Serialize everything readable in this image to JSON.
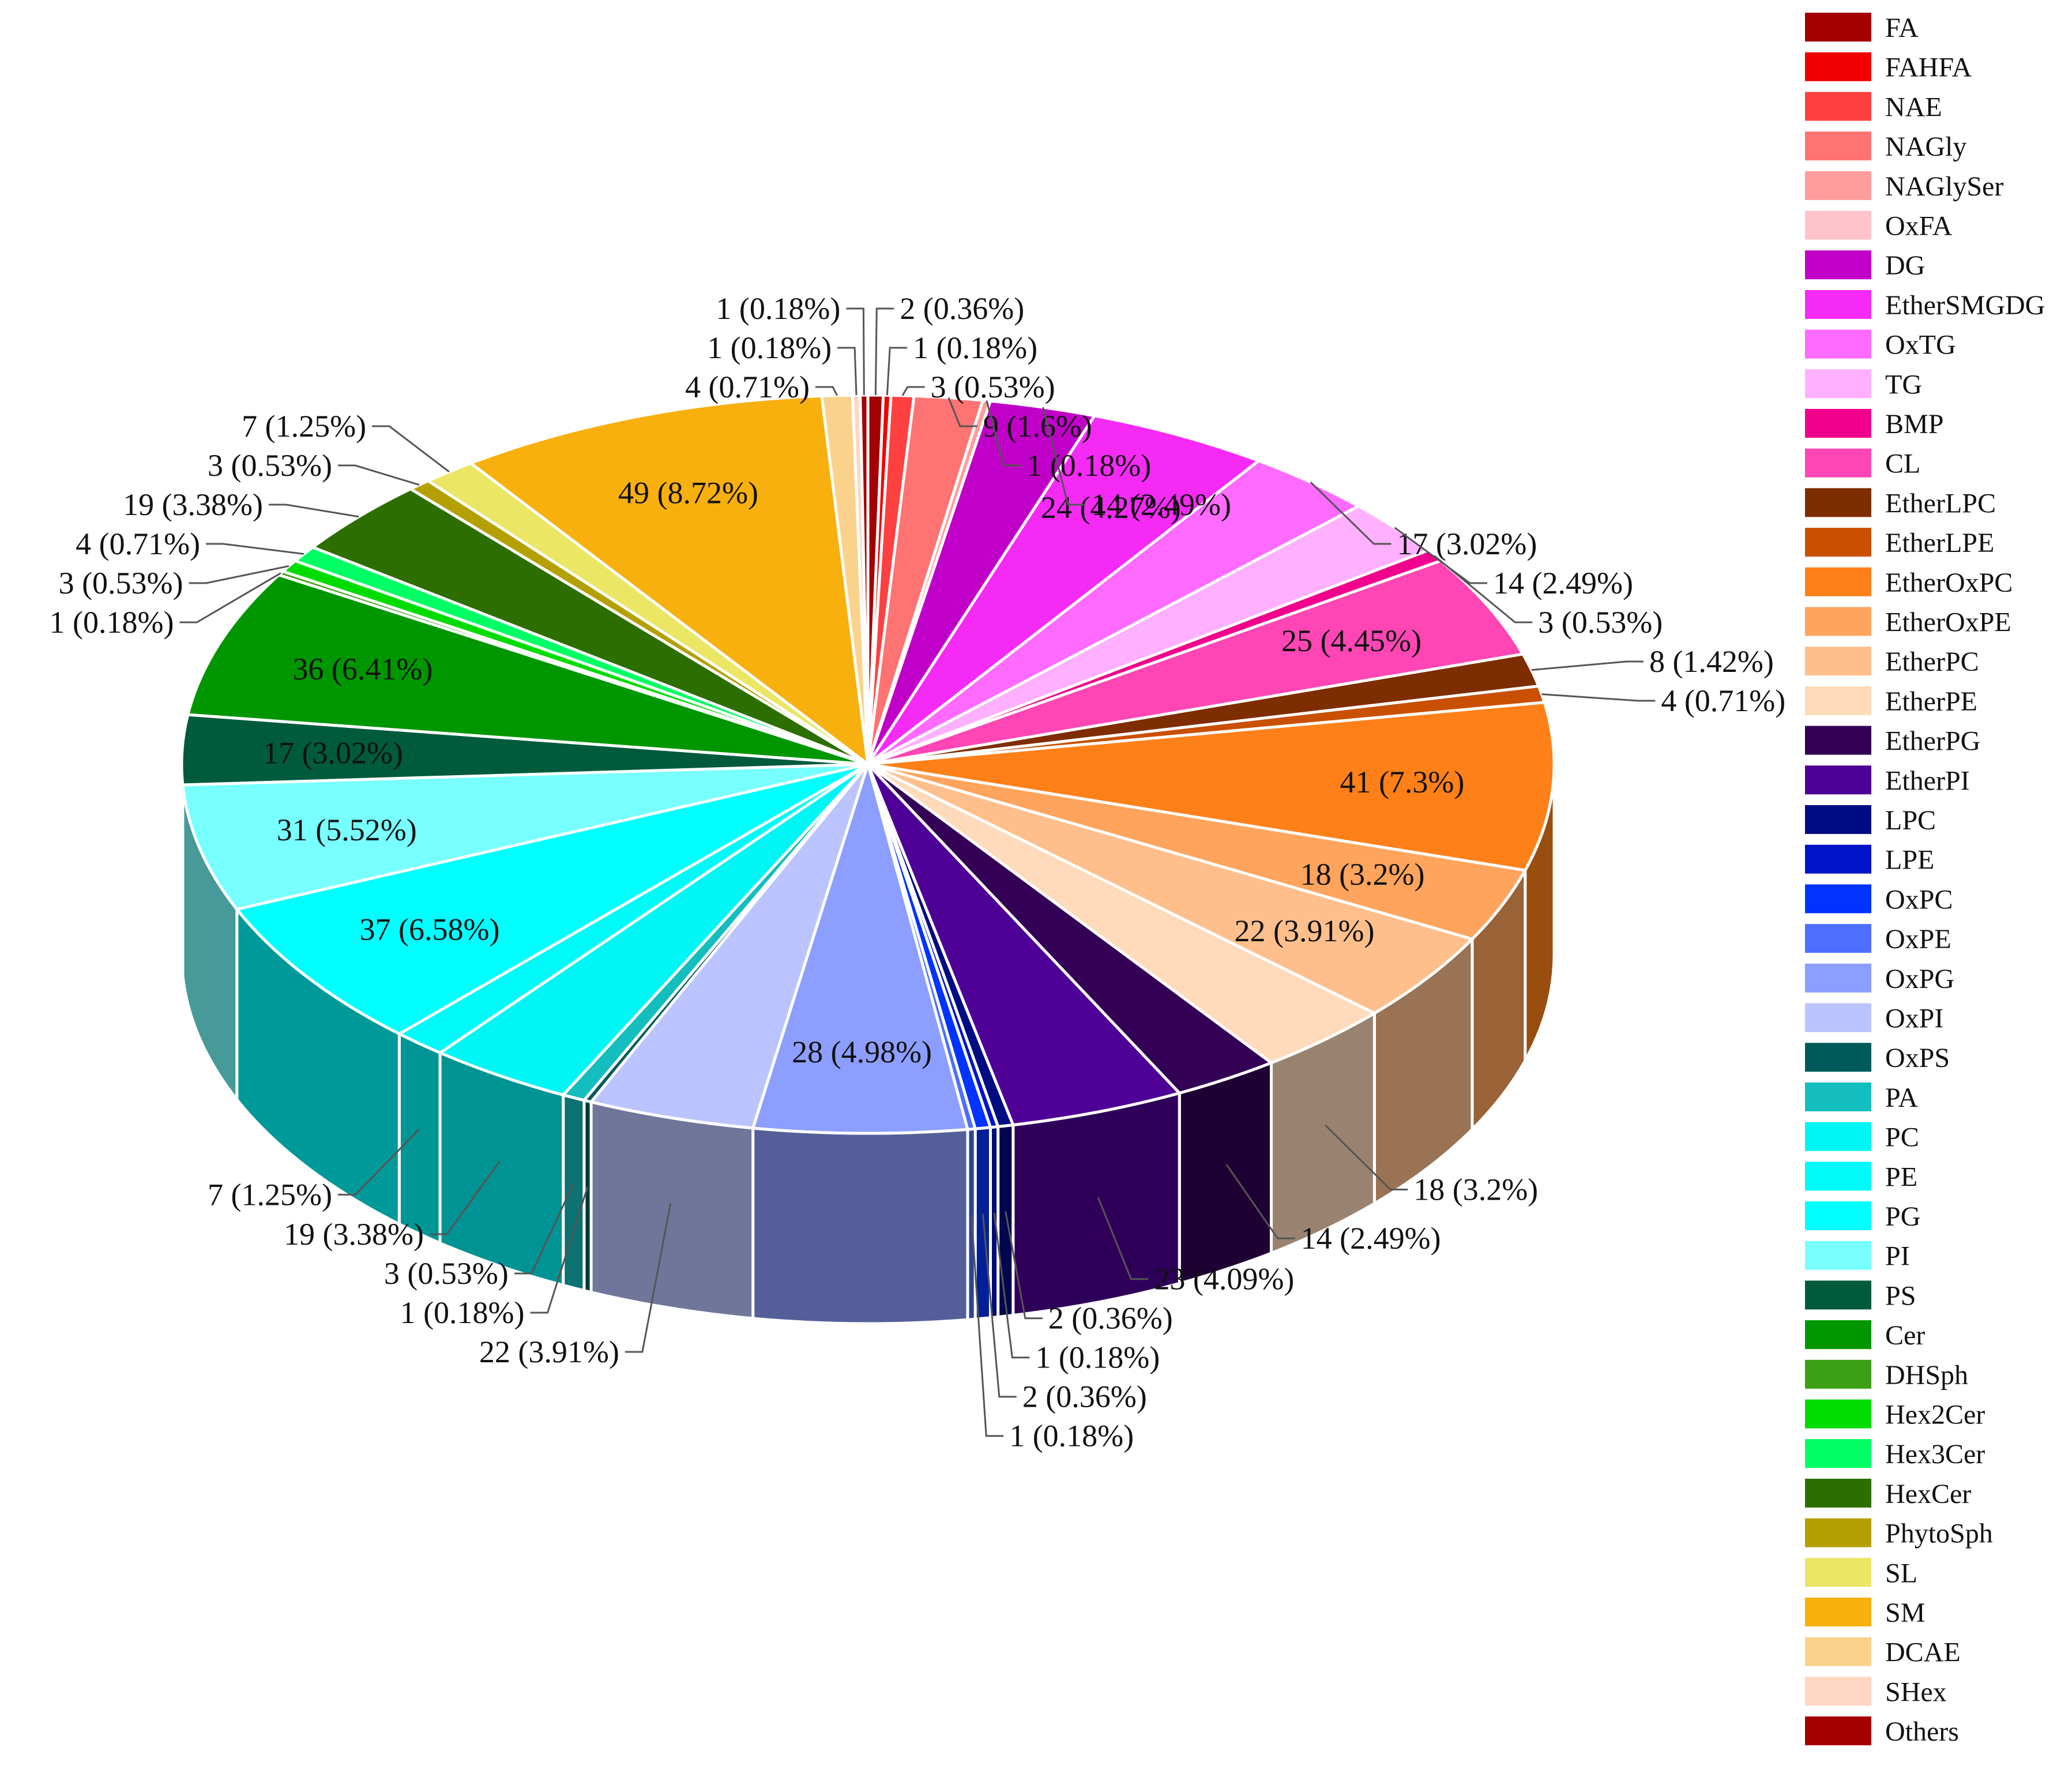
{
  "chart_data": {
    "type": "pie",
    "variant": "3d",
    "legend_position": "right",
    "slices": [
      {
        "name": "FA",
        "value": 2,
        "label": "2 (0.36%)",
        "color": "#A50000",
        "label_inside": false
      },
      {
        "name": "FAHFA",
        "value": 1,
        "label": "1 (0.18%)",
        "color": "#F00000",
        "label_inside": false
      },
      {
        "name": "NAE",
        "value": 3,
        "label": "3 (0.53%)",
        "color": "#FF4040",
        "label_inside": false
      },
      {
        "name": "NAGly",
        "value": 9,
        "label": "9 (1.6%)",
        "color": "#FF7373",
        "label_inside": false
      },
      {
        "name": "NAGlySer",
        "value": 1,
        "label": "1 (0.18%)",
        "color": "#FF9C9C",
        "label_inside": false
      },
      {
        "name": "OxFA",
        "value": 0,
        "label": "",
        "color": "#FFC3CC",
        "label_inside": false
      },
      {
        "name": "DG",
        "value": 14,
        "label": "14 (2.49%)",
        "color": "#C000C8",
        "label_inside": false
      },
      {
        "name": "EtherSMGDG",
        "value": 24,
        "label": "24 (4.27%)",
        "color": "#F52AF5",
        "label_inside": true
      },
      {
        "name": "OxTG",
        "value": 17,
        "label": "17 (3.02%)",
        "color": "#FF6AFF",
        "label_inside": false
      },
      {
        "name": "TG",
        "value": 14,
        "label": "14 (2.49%)",
        "color": "#FFB0FF",
        "label_inside": false
      },
      {
        "name": "BMP",
        "value": 3,
        "label": "3 (0.53%)",
        "color": "#F0008C",
        "label_inside": false
      },
      {
        "name": "CL",
        "value": 25,
        "label": "25 (4.45%)",
        "color": "#FF46B4",
        "label_inside": true
      },
      {
        "name": "EtherLPC",
        "value": 8,
        "label": "8 (1.42%)",
        "color": "#7D2D00",
        "label_inside": false
      },
      {
        "name": "EtherLPE",
        "value": 4,
        "label": "4 (0.71%)",
        "color": "#C85000",
        "label_inside": false
      },
      {
        "name": "EtherOxPC",
        "value": 41,
        "label": "41 (7.3%)",
        "color": "#FF8019",
        "label_inside": true
      },
      {
        "name": "EtherOxPE",
        "value": 18,
        "label": "18 (3.2%)",
        "color": "#FFA45C",
        "label_inside": true
      },
      {
        "name": "EtherPC",
        "value": 22,
        "label": "22 (3.91%)",
        "color": "#FFBF8C",
        "label_inside": true
      },
      {
        "name": "EtherPE",
        "value": 18,
        "label": "18 (3.2%)",
        "color": "#FFDABB",
        "label_inside": false
      },
      {
        "name": "EtherPG",
        "value": 14,
        "label": "14 (2.49%)",
        "color": "#330055",
        "label_inside": false
      },
      {
        "name": "EtherPI",
        "value": 23,
        "label": "23 (4.09%)",
        "color": "#4E0096",
        "label_inside": false
      },
      {
        "name": "LPC",
        "value": 2,
        "label": "2 (0.36%)",
        "color": "#000C82",
        "label_inside": false
      },
      {
        "name": "LPE",
        "value": 1,
        "label": "1 (0.18%)",
        "color": "#0014C8",
        "label_inside": false
      },
      {
        "name": "OxPC",
        "value": 2,
        "label": "2 (0.36%)",
        "color": "#0033FF",
        "label_inside": false
      },
      {
        "name": "OxPE",
        "value": 1,
        "label": "1 (0.18%)",
        "color": "#4D6EFF",
        "label_inside": false
      },
      {
        "name": "OxPG",
        "value": 28,
        "label": "28 (4.98%)",
        "color": "#8C9EFF",
        "label_inside": true
      },
      {
        "name": "OxPI",
        "value": 22,
        "label": "22 (3.91%)",
        "color": "#BBC4FF",
        "label_inside": false
      },
      {
        "name": "OxPS",
        "value": 1,
        "label": "1 (0.18%)",
        "color": "#005A5A",
        "label_inside": false
      },
      {
        "name": "PA",
        "value": 3,
        "label": "3 (0.53%)",
        "color": "#14BEBE",
        "label_inside": false
      },
      {
        "name": "PC",
        "value": 19,
        "label": "19 (3.38%)",
        "color": "#00F5F5",
        "label_inside": false
      },
      {
        "name": "PE",
        "value": 7,
        "label": "7 (1.25%)",
        "color": "#00FAFA",
        "label_inside": false
      },
      {
        "name": "PG",
        "value": 37,
        "label": "37 (6.58%)",
        "color": "#00FFFF",
        "label_inside": true
      },
      {
        "name": "PI",
        "value": 31,
        "label": "31 (5.52%)",
        "color": "#78FFFF",
        "label_inside": true
      },
      {
        "name": "PS",
        "value": 17,
        "label": "17 (3.02%)",
        "color": "#005A3C",
        "label_inside": true
      },
      {
        "name": "Cer",
        "value": 36,
        "label": "36 (6.41%)",
        "color": "#009600",
        "label_inside": true
      },
      {
        "name": "DHSph",
        "value": 1,
        "label": "1 (0.18%)",
        "color": "#3CA014",
        "label_inside": false
      },
      {
        "name": "Hex2Cer",
        "value": 3,
        "label": "3 (0.53%)",
        "color": "#00DC00",
        "label_inside": false
      },
      {
        "name": "Hex3Cer",
        "value": 4,
        "label": "4 (0.71%)",
        "color": "#00FF64",
        "label_inside": false
      },
      {
        "name": "HexCer",
        "value": 19,
        "label": "19 (3.38%)",
        "color": "#2D6E00",
        "label_inside": false
      },
      {
        "name": "PhytoSph",
        "value": 3,
        "label": "3 (0.53%)",
        "color": "#B4A000",
        "label_inside": false
      },
      {
        "name": "SL",
        "value": 7,
        "label": "7 (1.25%)",
        "color": "#EBE664",
        "label_inside": false
      },
      {
        "name": "SM",
        "value": 49,
        "label": "49 (8.72%)",
        "color": "#F8B00E",
        "label_inside": true
      },
      {
        "name": "DCAE",
        "value": 4,
        "label": "4 (0.71%)",
        "color": "#FAD28C",
        "label_inside": false
      },
      {
        "name": "SHex",
        "value": 1,
        "label": "1 (0.18%)",
        "color": "#FFD7C3",
        "label_inside": false
      },
      {
        "name": "Others",
        "value": 1,
        "label": "1 (0.18%)",
        "color": "#A50000",
        "label_inside": false
      }
    ]
  }
}
